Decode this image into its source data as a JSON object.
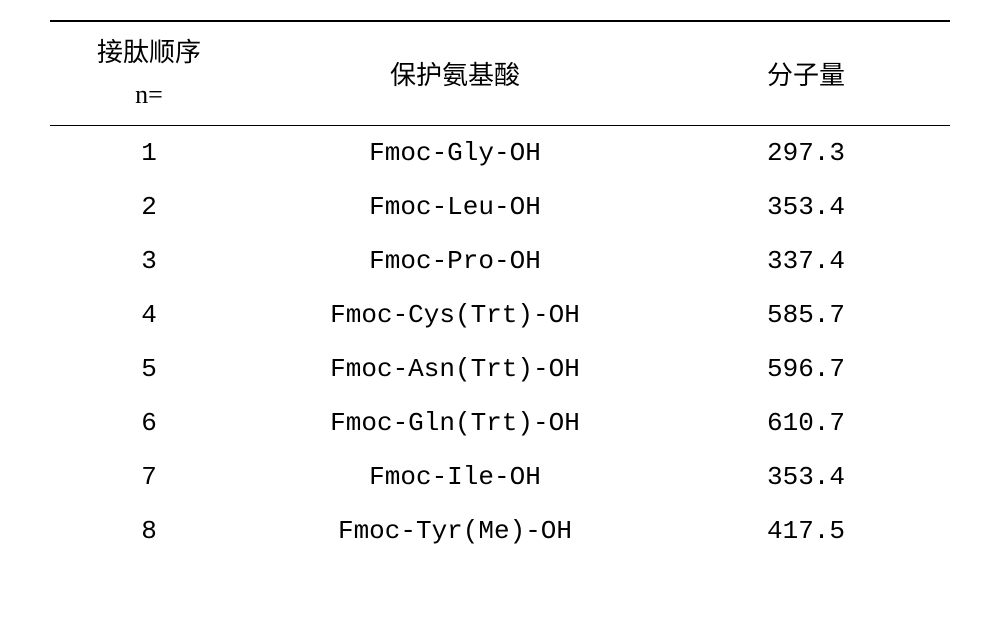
{
  "table": {
    "headers": {
      "col1_line1": "接肽顺序",
      "col1_line2": "n=",
      "col2": "保护氨基酸",
      "col3": "分子量"
    },
    "rows": [
      {
        "n": "1",
        "amino_acid": "Fmoc-Gly-OH",
        "mw": "297.3"
      },
      {
        "n": "2",
        "amino_acid": "Fmoc-Leu-OH",
        "mw": "353.4"
      },
      {
        "n": "3",
        "amino_acid": "Fmoc-Pro-OH",
        "mw": "337.4"
      },
      {
        "n": "4",
        "amino_acid": "Fmoc-Cys(Trt)-OH",
        "mw": "585.7"
      },
      {
        "n": "5",
        "amino_acid": "Fmoc-Asn(Trt)-OH",
        "mw": "596.7"
      },
      {
        "n": "6",
        "amino_acid": "Fmoc-Gln(Trt)-OH",
        "mw": "610.7"
      },
      {
        "n": "7",
        "amino_acid": "Fmoc-Ile-OH",
        "mw": "353.4"
      },
      {
        "n": "8",
        "amino_acid": "Fmoc-Tyr(Me)-OH",
        "mw": "417.5"
      }
    ],
    "styling": {
      "border_color": "#000000",
      "background_color": "#ffffff",
      "text_color": "#000000",
      "header_fontsize": 26,
      "body_fontsize": 26,
      "top_border_width": 2,
      "header_bottom_border_width": 1.5
    }
  }
}
